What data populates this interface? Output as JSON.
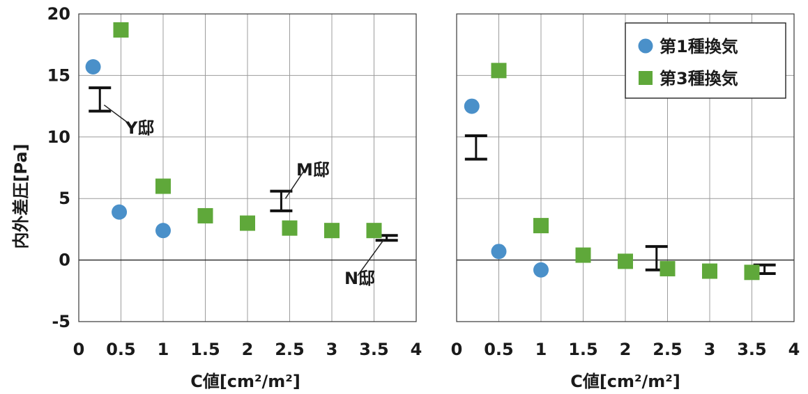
{
  "colors": {
    "series1": "#4a90c9",
    "series3": "#5fa83a",
    "bracket": "#111111",
    "grid": "#9c9c9c"
  },
  "chart_data": [
    {
      "type": "scatter",
      "xlabel": "C値[cm²/m²]",
      "ylabel": "内外差圧[Pa]",
      "xlim": [
        0,
        4
      ],
      "ylim": [
        -5,
        20
      ],
      "x_ticks": [
        "0",
        "0.5",
        "1",
        "1.5",
        "2",
        "2.5",
        "3",
        "3.5",
        "4"
      ],
      "y_ticks": [
        "-5",
        "0",
        "5",
        "10",
        "15",
        "20"
      ],
      "grid": "vertical-and-horizontal",
      "series": [
        {
          "name": "第1種換気",
          "marker": "circle",
          "color": "#4a90c9",
          "points": [
            [
              0.17,
              15.7
            ],
            [
              0.48,
              3.9
            ],
            [
              1.0,
              2.4
            ]
          ]
        },
        {
          "name": "第3種換気",
          "marker": "square",
          "color": "#5fa83a",
          "points": [
            [
              0.5,
              18.7
            ],
            [
              1.0,
              6.0
            ],
            [
              1.5,
              3.6
            ],
            [
              2.0,
              3.0
            ],
            [
              2.5,
              2.6
            ],
            [
              3.0,
              2.4
            ],
            [
              3.5,
              2.4
            ]
          ]
        }
      ],
      "ranges": [
        {
          "label": "Y邸",
          "x": 0.25,
          "low": 12.1,
          "high": 14.0
        },
        {
          "label": "M邸",
          "x": 2.4,
          "low": 4.0,
          "high": 5.6
        },
        {
          "label": "N邸",
          "x": 3.65,
          "low": 1.6,
          "high": 2.0
        }
      ],
      "annotations": [
        "Y邸",
        "M邸",
        "N邸"
      ]
    },
    {
      "type": "scatter",
      "xlabel": "C値[cm²/m²]",
      "xlim": [
        0,
        4
      ],
      "ylim": [
        -5,
        20
      ],
      "x_ticks": [
        "0",
        "0.5",
        "1",
        "1.5",
        "2",
        "2.5",
        "3",
        "3.5",
        "4"
      ],
      "grid": "vertical-and-horizontal",
      "legend": "top-right",
      "series": [
        {
          "name": "第1種換気",
          "marker": "circle",
          "color": "#4a90c9",
          "points": [
            [
              0.18,
              12.5
            ],
            [
              0.5,
              0.7
            ],
            [
              1.0,
              -0.8
            ]
          ]
        },
        {
          "name": "第3種換気",
          "marker": "square",
          "color": "#5fa83a",
          "points": [
            [
              0.5,
              15.4
            ],
            [
              1.0,
              2.8
            ],
            [
              1.5,
              0.4
            ],
            [
              2.0,
              -0.1
            ],
            [
              2.5,
              -0.7
            ],
            [
              3.0,
              -0.9
            ],
            [
              3.5,
              -1.0
            ]
          ]
        }
      ],
      "ranges": [
        {
          "x": 0.23,
          "low": 8.2,
          "high": 10.1
        },
        {
          "x": 2.37,
          "low": -0.8,
          "high": 1.1
        },
        {
          "x": 3.65,
          "low": -1.1,
          "high": -0.4
        }
      ]
    }
  ]
}
